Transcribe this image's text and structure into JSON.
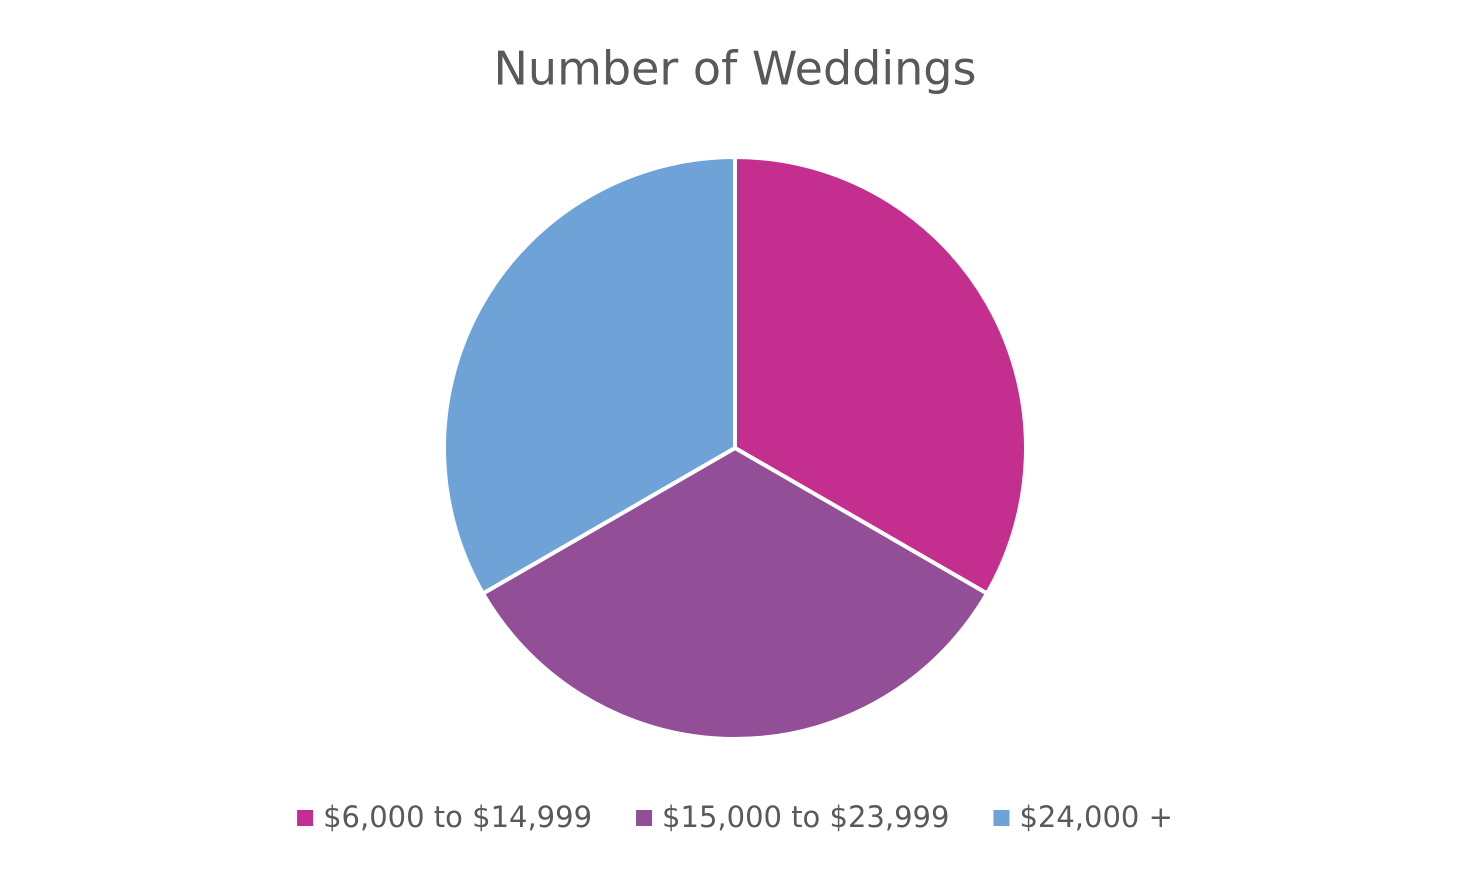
{
  "chart_data": {
    "type": "pie",
    "title": "Number of Weddings",
    "categories": [
      "$6,000 to $14,999",
      "$15,000 to $23,999",
      "$24,000 +"
    ],
    "values": [
      1,
      1,
      1
    ],
    "colors": [
      "#c32e8f",
      "#934e98",
      "#6fa3d7"
    ],
    "legend": "bottom"
  }
}
